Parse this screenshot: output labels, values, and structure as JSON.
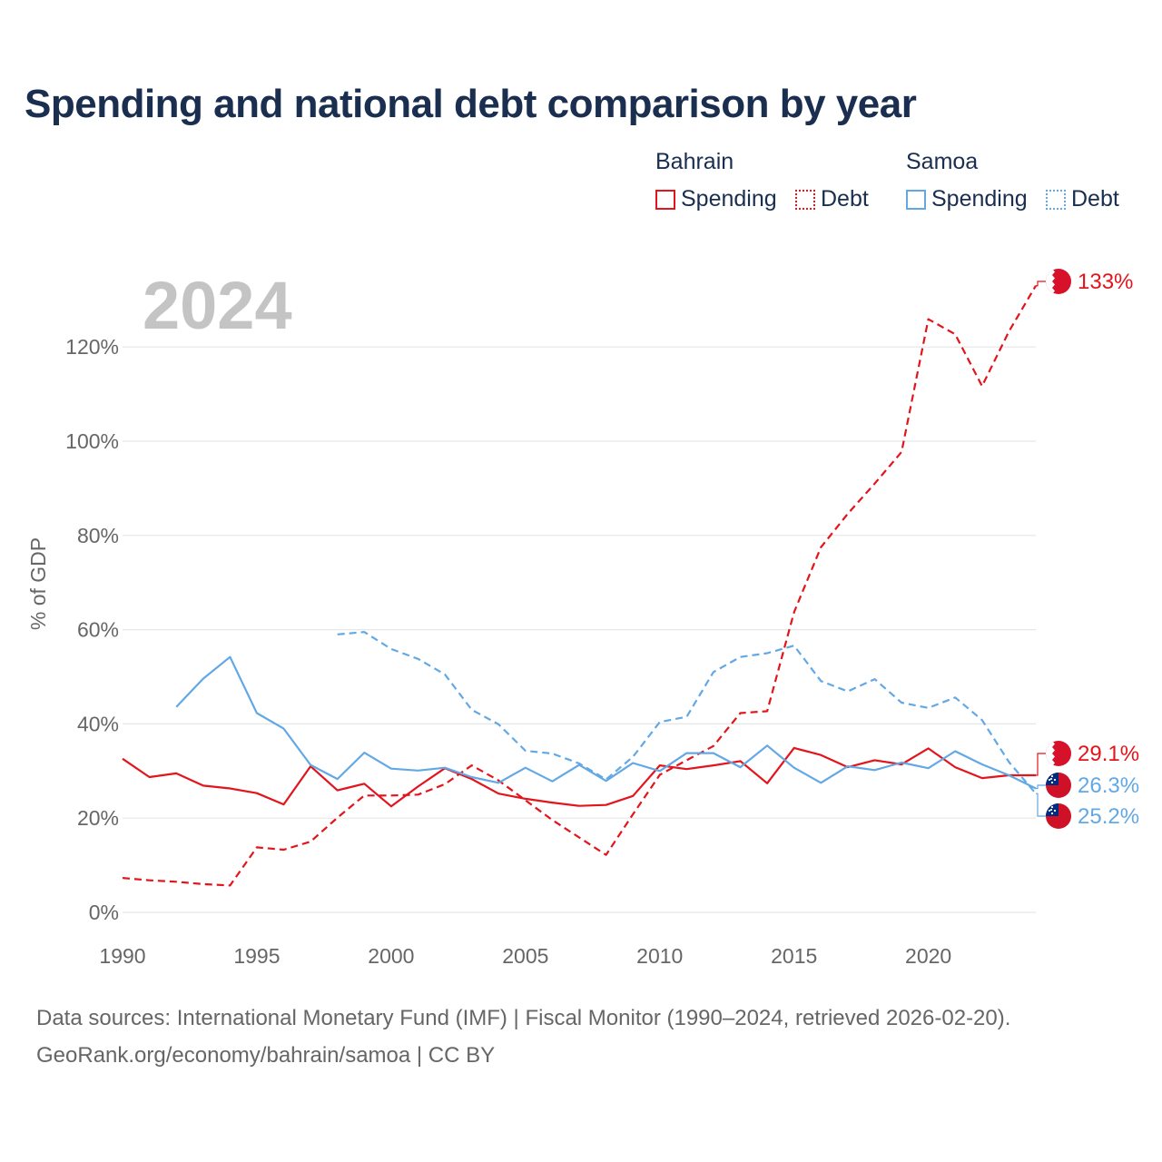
{
  "title": "Spending and national debt comparison by year",
  "year_badge": "2024",
  "legend": {
    "groups": [
      {
        "country": "Bahrain",
        "items": [
          "Spending",
          "Debt"
        ]
      },
      {
        "country": "Samoa",
        "items": [
          "Spending",
          "Debt"
        ]
      }
    ]
  },
  "colors": {
    "bahrain": "#e3141b",
    "samoa": "#62a8e5",
    "title": "#1a2e4f",
    "axis_text": "#666666",
    "grid": "#e6e6e6",
    "year_badge": "#c4c4c4"
  },
  "footer": {
    "line1": "Data sources: International Monetary Fund (IMF) | Fiscal Monitor (1990–2024, retrieved 2026-02-20).",
    "line2": "GeoRank.org/economy/bahrain/samoa | CC BY"
  },
  "chart_data": {
    "type": "line",
    "title": "Spending and national debt comparison by year",
    "xlabel": "",
    "ylabel": "% of GDP",
    "xlim": [
      1990,
      2024
    ],
    "ylim": [
      0,
      133
    ],
    "x_ticks": [
      1990,
      1995,
      2000,
      2005,
      2010,
      2015,
      2020
    ],
    "y_ticks": [
      0,
      20,
      40,
      60,
      80,
      100,
      120
    ],
    "y_tick_labels": [
      "0%",
      "20%",
      "40%",
      "60%",
      "80%",
      "100%",
      "120%"
    ],
    "x_tick_labels": [
      "1990",
      "1995",
      "2000",
      "2005",
      "2010",
      "2015",
      "2020"
    ],
    "grid": true,
    "series": [
      {
        "name": "Bahrain Debt",
        "country": "Bahrain",
        "metric": "Debt",
        "style": "dashed",
        "color": "#e3141b",
        "x": [
          1990,
          1991,
          1992,
          1993,
          1994,
          1995,
          1996,
          1997,
          1998,
          1999,
          2000,
          2001,
          2002,
          2003,
          2004,
          2005,
          2006,
          2007,
          2008,
          2009,
          2010,
          2011,
          2012,
          2013,
          2014,
          2015,
          2016,
          2017,
          2018,
          2019,
          2020,
          2021,
          2022,
          2023,
          2024
        ],
        "values": [
          7.3,
          6.8,
          6.5,
          6.0,
          5.7,
          13.8,
          13.3,
          15.0,
          20.1,
          24.8,
          24.8,
          25.0,
          27.2,
          31.2,
          28.0,
          23.8,
          19.6,
          15.9,
          12.2,
          20.8,
          29.2,
          32.3,
          35.3,
          42.3,
          42.7,
          63.7,
          77.5,
          84.6,
          91.0,
          97.7,
          125.9,
          122.7,
          111.7,
          123.3,
          133.0
        ],
        "end_label": "133%"
      },
      {
        "name": "Bahrain Spending",
        "country": "Bahrain",
        "metric": "Spending",
        "style": "solid",
        "color": "#e3141b",
        "x": [
          1990,
          1991,
          1992,
          1993,
          1994,
          1995,
          1996,
          1997,
          1998,
          1999,
          2000,
          2001,
          2002,
          2003,
          2004,
          2005,
          2006,
          2007,
          2008,
          2009,
          2010,
          2011,
          2012,
          2013,
          2014,
          2015,
          2016,
          2017,
          2018,
          2019,
          2020,
          2021,
          2022,
          2023,
          2024
        ],
        "values": [
          32.6,
          28.7,
          29.5,
          26.9,
          26.3,
          25.3,
          22.9,
          31.0,
          25.9,
          27.3,
          22.5,
          26.7,
          30.6,
          28.3,
          25.2,
          24.1,
          23.3,
          22.6,
          22.8,
          24.7,
          31.2,
          30.4,
          31.2,
          32.1,
          27.4,
          34.9,
          33.4,
          30.8,
          32.3,
          31.4,
          34.8,
          30.8,
          28.5,
          29.1,
          29.1
        ],
        "end_label": "29.1%"
      },
      {
        "name": "Samoa Debt",
        "country": "Samoa",
        "metric": "Debt",
        "style": "dashed",
        "color": "#62a8e5",
        "x": [
          1998,
          1999,
          2000,
          2001,
          2002,
          2003,
          2004,
          2005,
          2006,
          2007,
          2008,
          2009,
          2010,
          2011,
          2012,
          2013,
          2014,
          2015,
          2016,
          2017,
          2018,
          2019,
          2020,
          2021,
          2022,
          2023,
          2024
        ],
        "values": [
          59.0,
          59.5,
          55.9,
          53.8,
          50.5,
          43.0,
          39.9,
          34.3,
          33.7,
          31.6,
          28.2,
          33.0,
          40.4,
          41.5,
          51.0,
          54.2,
          55.0,
          56.6,
          49.1,
          46.9,
          49.5,
          44.5,
          43.4,
          45.6,
          40.8,
          31.9,
          25.2
        ],
        "end_label": "25.2%"
      },
      {
        "name": "Samoa Spending",
        "country": "Samoa",
        "metric": "Spending",
        "style": "solid",
        "color": "#62a8e5",
        "x": [
          1992,
          1993,
          1994,
          1995,
          1996,
          1997,
          1998,
          1999,
          2000,
          2001,
          2002,
          2003,
          2004,
          2005,
          2006,
          2007,
          2008,
          2009,
          2010,
          2011,
          2012,
          2013,
          2014,
          2015,
          2016,
          2017,
          2018,
          2019,
          2020,
          2021,
          2022,
          2023,
          2024
        ],
        "values": [
          43.6,
          49.6,
          54.2,
          42.3,
          39.0,
          31.3,
          28.3,
          33.9,
          30.5,
          30.1,
          30.7,
          28.7,
          27.5,
          30.7,
          27.8,
          31.3,
          27.9,
          31.7,
          30.0,
          33.8,
          33.8,
          30.8,
          35.4,
          30.7,
          27.5,
          31.0,
          30.2,
          31.8,
          30.6,
          34.2,
          31.4,
          29.1,
          26.3
        ],
        "end_label": "26.3%"
      }
    ]
  }
}
